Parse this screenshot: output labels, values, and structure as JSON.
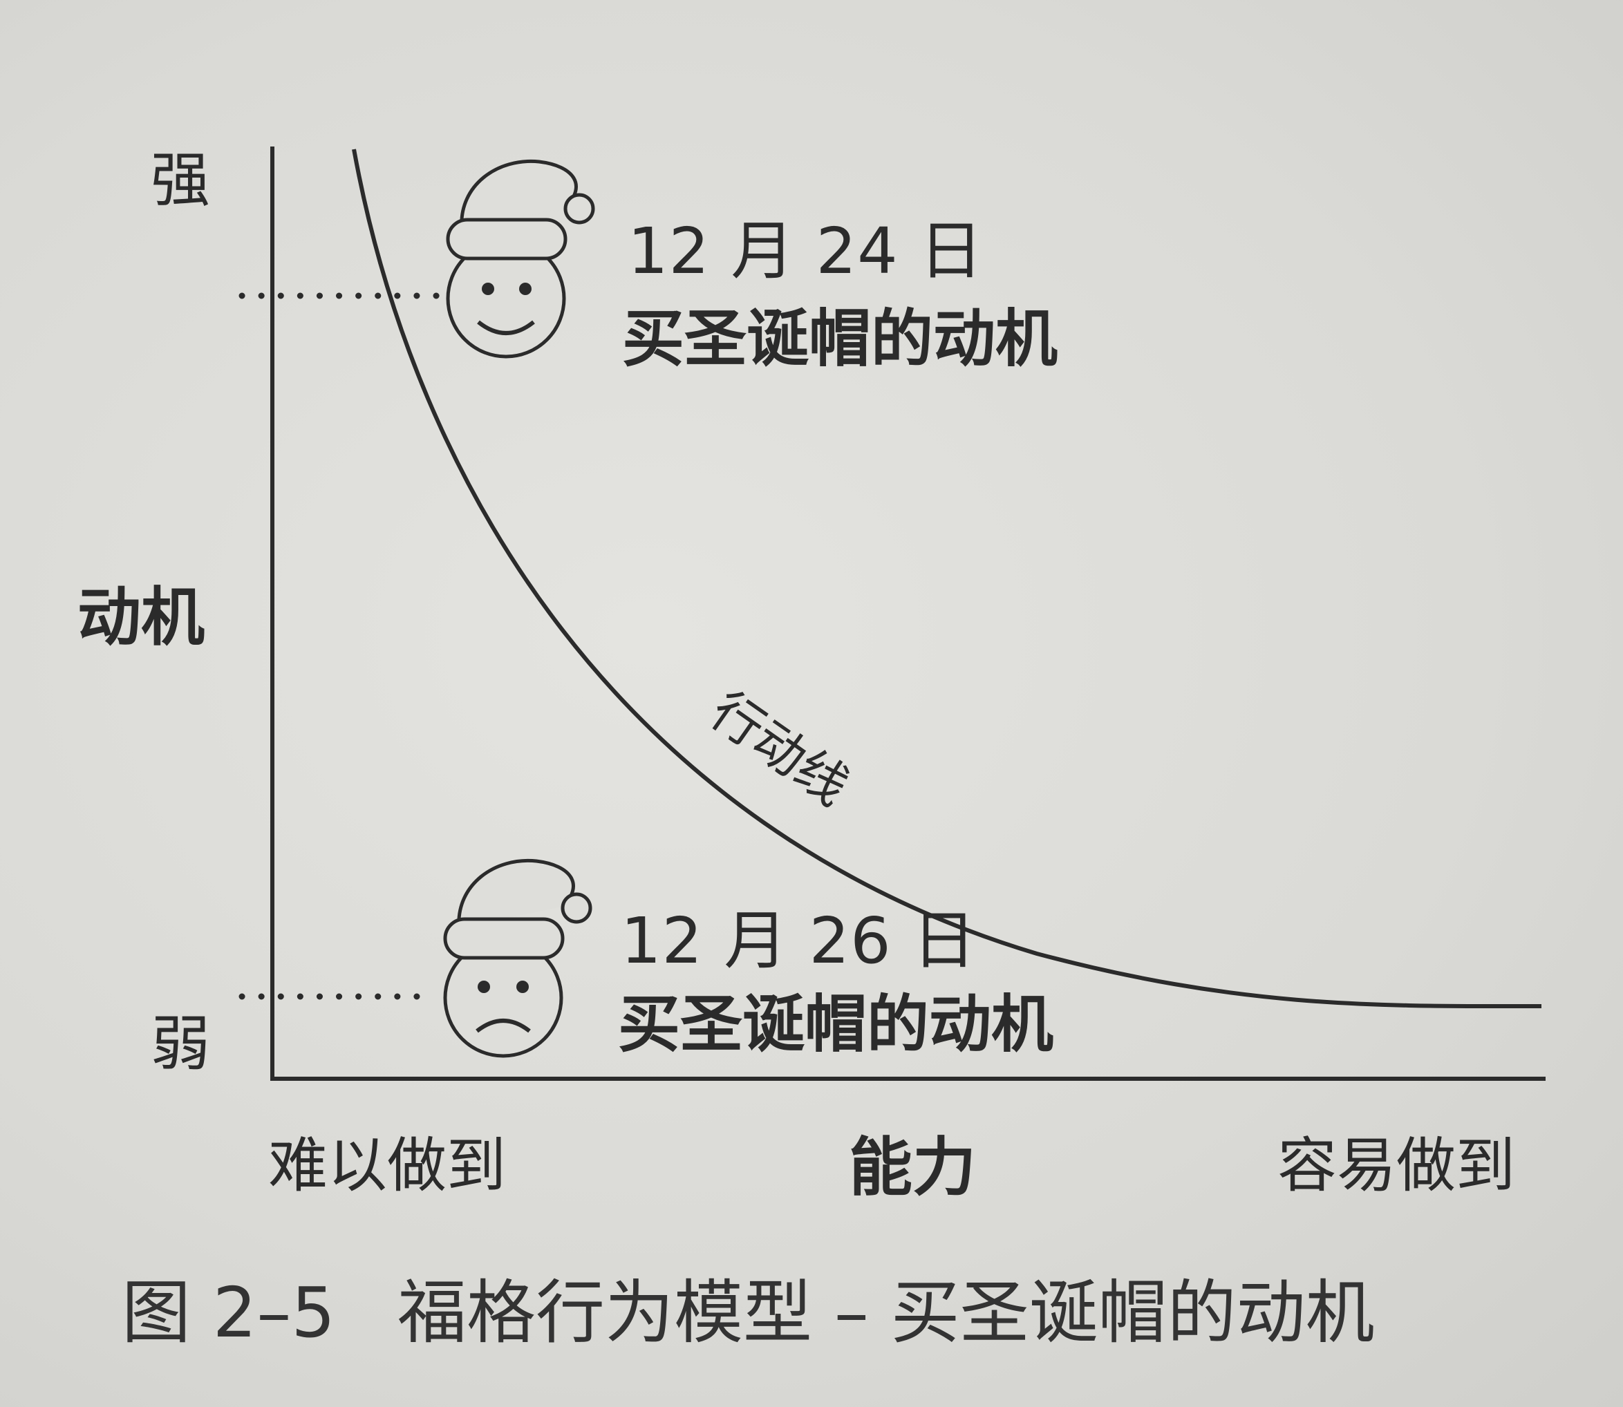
{
  "figure": {
    "y_axis": {
      "title": "动机",
      "high_label": "强",
      "low_label": "弱"
    },
    "x_axis": {
      "title": "能力",
      "left_label": "难以做到",
      "right_label": "容易做到"
    },
    "curve_label": "行动线",
    "annotations": [
      {
        "date": "12 月 24 日",
        "text": "买圣诞帽的动机",
        "mood": "smile",
        "icon": "santa-happy-face-icon"
      },
      {
        "date": "12 月 26 日",
        "text": "买圣诞帽的动机",
        "mood": "frown",
        "icon": "santa-sad-face-icon"
      }
    ],
    "caption": {
      "number": "图 2–5",
      "title": "福格行为模型 – 买圣诞帽的动机"
    }
  },
  "colors": {
    "ink": "#2b2b2b",
    "paper": "#dcdcd8"
  }
}
